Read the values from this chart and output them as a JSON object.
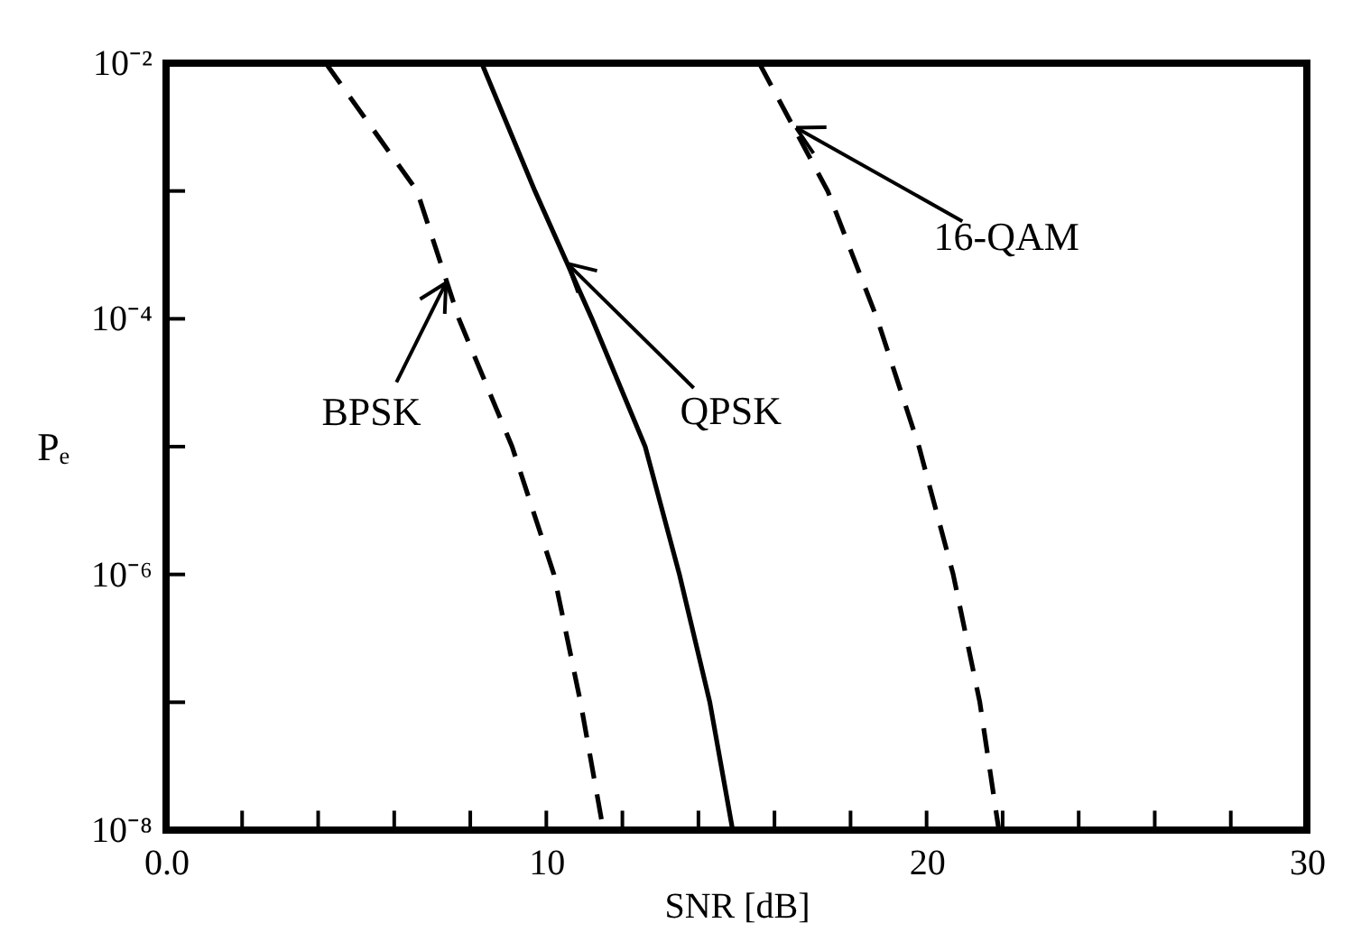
{
  "chart_data": {
    "type": "line",
    "xlabel": "SNR [dB]",
    "ylabel": "Pₑ",
    "log": "y",
    "grid": false,
    "xlim": [
      0,
      30
    ],
    "ylim": [
      1e-08,
      0.01
    ],
    "xticks": [
      {
        "value": 0,
        "label": "0.0"
      },
      {
        "value": 2,
        "label": null
      },
      {
        "value": 4,
        "label": null
      },
      {
        "value": 6,
        "label": null
      },
      {
        "value": 8,
        "label": null
      },
      10,
      {
        "value": 12,
        "label": null
      },
      {
        "value": 14,
        "label": null
      },
      {
        "value": 16,
        "label": null
      },
      {
        "value": 18,
        "label": null
      },
      20,
      {
        "value": 22,
        "label": null
      },
      {
        "value": 24,
        "label": null
      },
      {
        "value": 26,
        "label": null
      },
      {
        "value": 28,
        "label": null
      },
      30
    ],
    "yticks": [
      {
        "value": 1e-08,
        "label": "10⁻⁸"
      },
      {
        "value": 1e-07,
        "label": null
      },
      {
        "value": 1e-06,
        "label": "10⁻⁶"
      },
      {
        "value": 1e-05,
        "label": null
      },
      {
        "value": 0.0001,
        "label": "10⁻⁴"
      },
      {
        "value": 0.001,
        "label": null
      },
      {
        "value": 0.01,
        "label": "10⁻²"
      }
    ],
    "series": [
      {
        "color": "#000000",
        "line_style": "dashed",
        "x": [
          4.2,
          6.6,
          7.7,
          9.1,
          10.2,
          10.9,
          11.5
        ],
        "values": [
          0.01,
          0.001,
          0.0001,
          1e-05,
          1e-06,
          1e-07,
          1e-08
        ]
      },
      {
        "color": "#000000",
        "line_style": "solid",
        "x": [
          8.3,
          9.7,
          11.2,
          12.6,
          13.5,
          14.3,
          14.9
        ],
        "values": [
          0.01,
          0.001,
          0.0001,
          1e-05,
          1e-06,
          1e-07,
          1e-08
        ]
      },
      {
        "color": "#000000",
        "line_style": "dashed",
        "x": [
          15.6,
          17.4,
          18.7,
          19.8,
          20.7,
          21.4,
          21.9
        ],
        "values": [
          0.01,
          0.001,
          0.0001,
          1e-05,
          1e-06,
          1e-07,
          1e-08
        ]
      }
    ],
    "annotations": [
      {
        "text": "BPSK",
        "x": 7.4,
        "y": 0.0002
      },
      {
        "text": "QPSK",
        "x": 10.5,
        "y": 0.00028
      },
      {
        "text": "16-QAM",
        "x": 16.5,
        "y": 0.0032
      }
    ]
  }
}
